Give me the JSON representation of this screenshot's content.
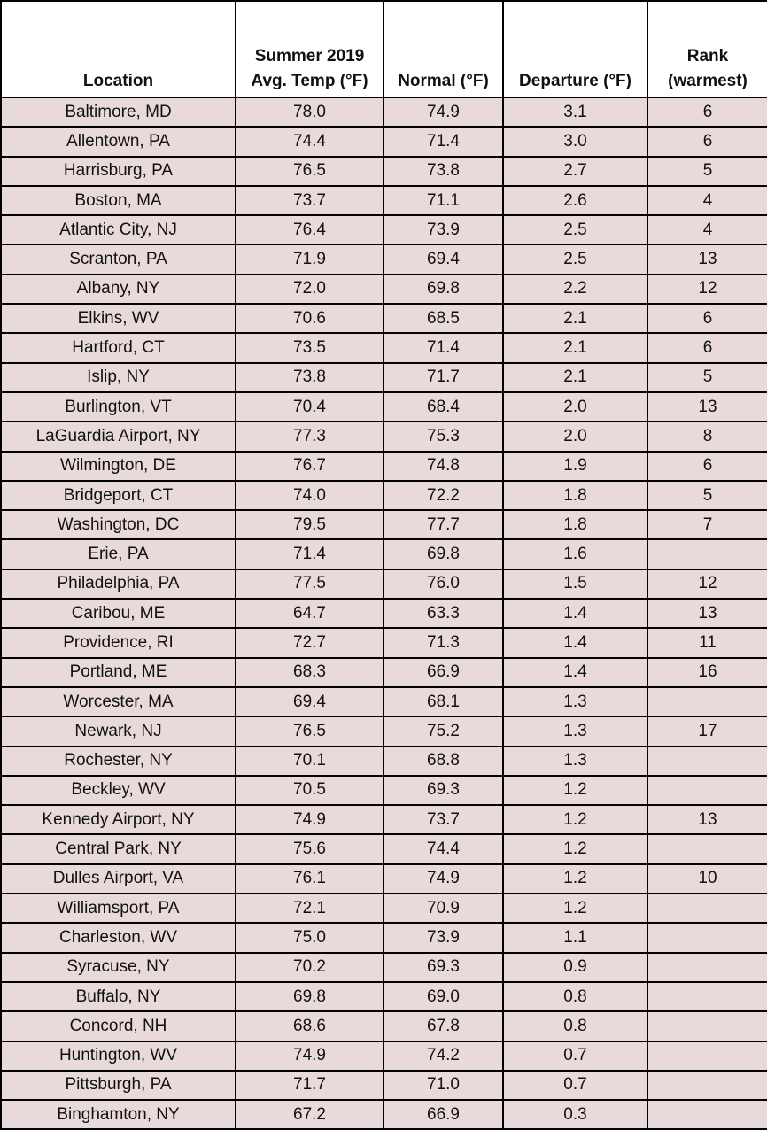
{
  "table": {
    "headers": [
      "Location",
      "Summer 2019\nAvg. Temp (°F)",
      "Normal (°F)",
      "Departure (°F)",
      "Rank\n(warmest)"
    ],
    "header_lines": [
      [
        "Location"
      ],
      [
        "Summer 2019",
        "Avg. Temp (°F)"
      ],
      [
        "Normal (°F)"
      ],
      [
        "Departure (°F)"
      ],
      [
        "Rank",
        "(warmest)"
      ]
    ],
    "cell_color": "#e8dadb",
    "rows": [
      [
        "Baltimore, MD",
        "78.0",
        "74.9",
        "3.1",
        "6"
      ],
      [
        "Allentown, PA",
        "74.4",
        "71.4",
        "3.0",
        "6"
      ],
      [
        "Harrisburg, PA",
        "76.5",
        "73.8",
        "2.7",
        "5"
      ],
      [
        "Boston, MA",
        "73.7",
        "71.1",
        "2.6",
        "4"
      ],
      [
        "Atlantic City, NJ",
        "76.4",
        "73.9",
        "2.5",
        "4"
      ],
      [
        "Scranton, PA",
        "71.9",
        "69.4",
        "2.5",
        "13"
      ],
      [
        "Albany, NY",
        "72.0",
        "69.8",
        "2.2",
        "12"
      ],
      [
        "Elkins, WV",
        "70.6",
        "68.5",
        "2.1",
        "6"
      ],
      [
        "Hartford, CT",
        "73.5",
        "71.4",
        "2.1",
        "6"
      ],
      [
        "Islip, NY",
        "73.8",
        "71.7",
        "2.1",
        "5"
      ],
      [
        "Burlington, VT",
        "70.4",
        "68.4",
        "2.0",
        "13"
      ],
      [
        "LaGuardia Airport, NY",
        "77.3",
        "75.3",
        "2.0",
        "8"
      ],
      [
        "Wilmington, DE",
        "76.7",
        "74.8",
        "1.9",
        "6"
      ],
      [
        "Bridgeport, CT",
        "74.0",
        "72.2",
        "1.8",
        "5"
      ],
      [
        "Washington, DC",
        "79.5",
        "77.7",
        "1.8",
        "7"
      ],
      [
        "Erie, PA",
        "71.4",
        "69.8",
        "1.6",
        ""
      ],
      [
        "Philadelphia, PA",
        "77.5",
        "76.0",
        "1.5",
        "12"
      ],
      [
        "Caribou, ME",
        "64.7",
        "63.3",
        "1.4",
        "13"
      ],
      [
        "Providence, RI",
        "72.7",
        "71.3",
        "1.4",
        "11"
      ],
      [
        "Portland, ME",
        "68.3",
        "66.9",
        "1.4",
        "16"
      ],
      [
        "Worcester, MA",
        "69.4",
        "68.1",
        "1.3",
        ""
      ],
      [
        "Newark, NJ",
        "76.5",
        "75.2",
        "1.3",
        "17"
      ],
      [
        "Rochester, NY",
        "70.1",
        "68.8",
        "1.3",
        ""
      ],
      [
        "Beckley, WV",
        "70.5",
        "69.3",
        "1.2",
        ""
      ],
      [
        "Kennedy Airport, NY",
        "74.9",
        "73.7",
        "1.2",
        "13"
      ],
      [
        "Central Park, NY",
        "75.6",
        "74.4",
        "1.2",
        ""
      ],
      [
        "Dulles Airport, VA",
        "76.1",
        "74.9",
        "1.2",
        "10"
      ],
      [
        "Williamsport, PA",
        "72.1",
        "70.9",
        "1.2",
        ""
      ],
      [
        "Charleston, WV",
        "75.0",
        "73.9",
        "1.1",
        ""
      ],
      [
        "Syracuse, NY",
        "70.2",
        "69.3",
        "0.9",
        ""
      ],
      [
        "Buffalo, NY",
        "69.8",
        "69.0",
        "0.8",
        ""
      ],
      [
        "Concord, NH",
        "68.6",
        "67.8",
        "0.8",
        ""
      ],
      [
        "Huntington, WV",
        "74.9",
        "74.2",
        "0.7",
        ""
      ],
      [
        "Pittsburgh, PA",
        "71.7",
        "71.0",
        "0.7",
        ""
      ],
      [
        "Binghamton, NY",
        "67.2",
        "66.9",
        "0.3",
        ""
      ]
    ]
  }
}
